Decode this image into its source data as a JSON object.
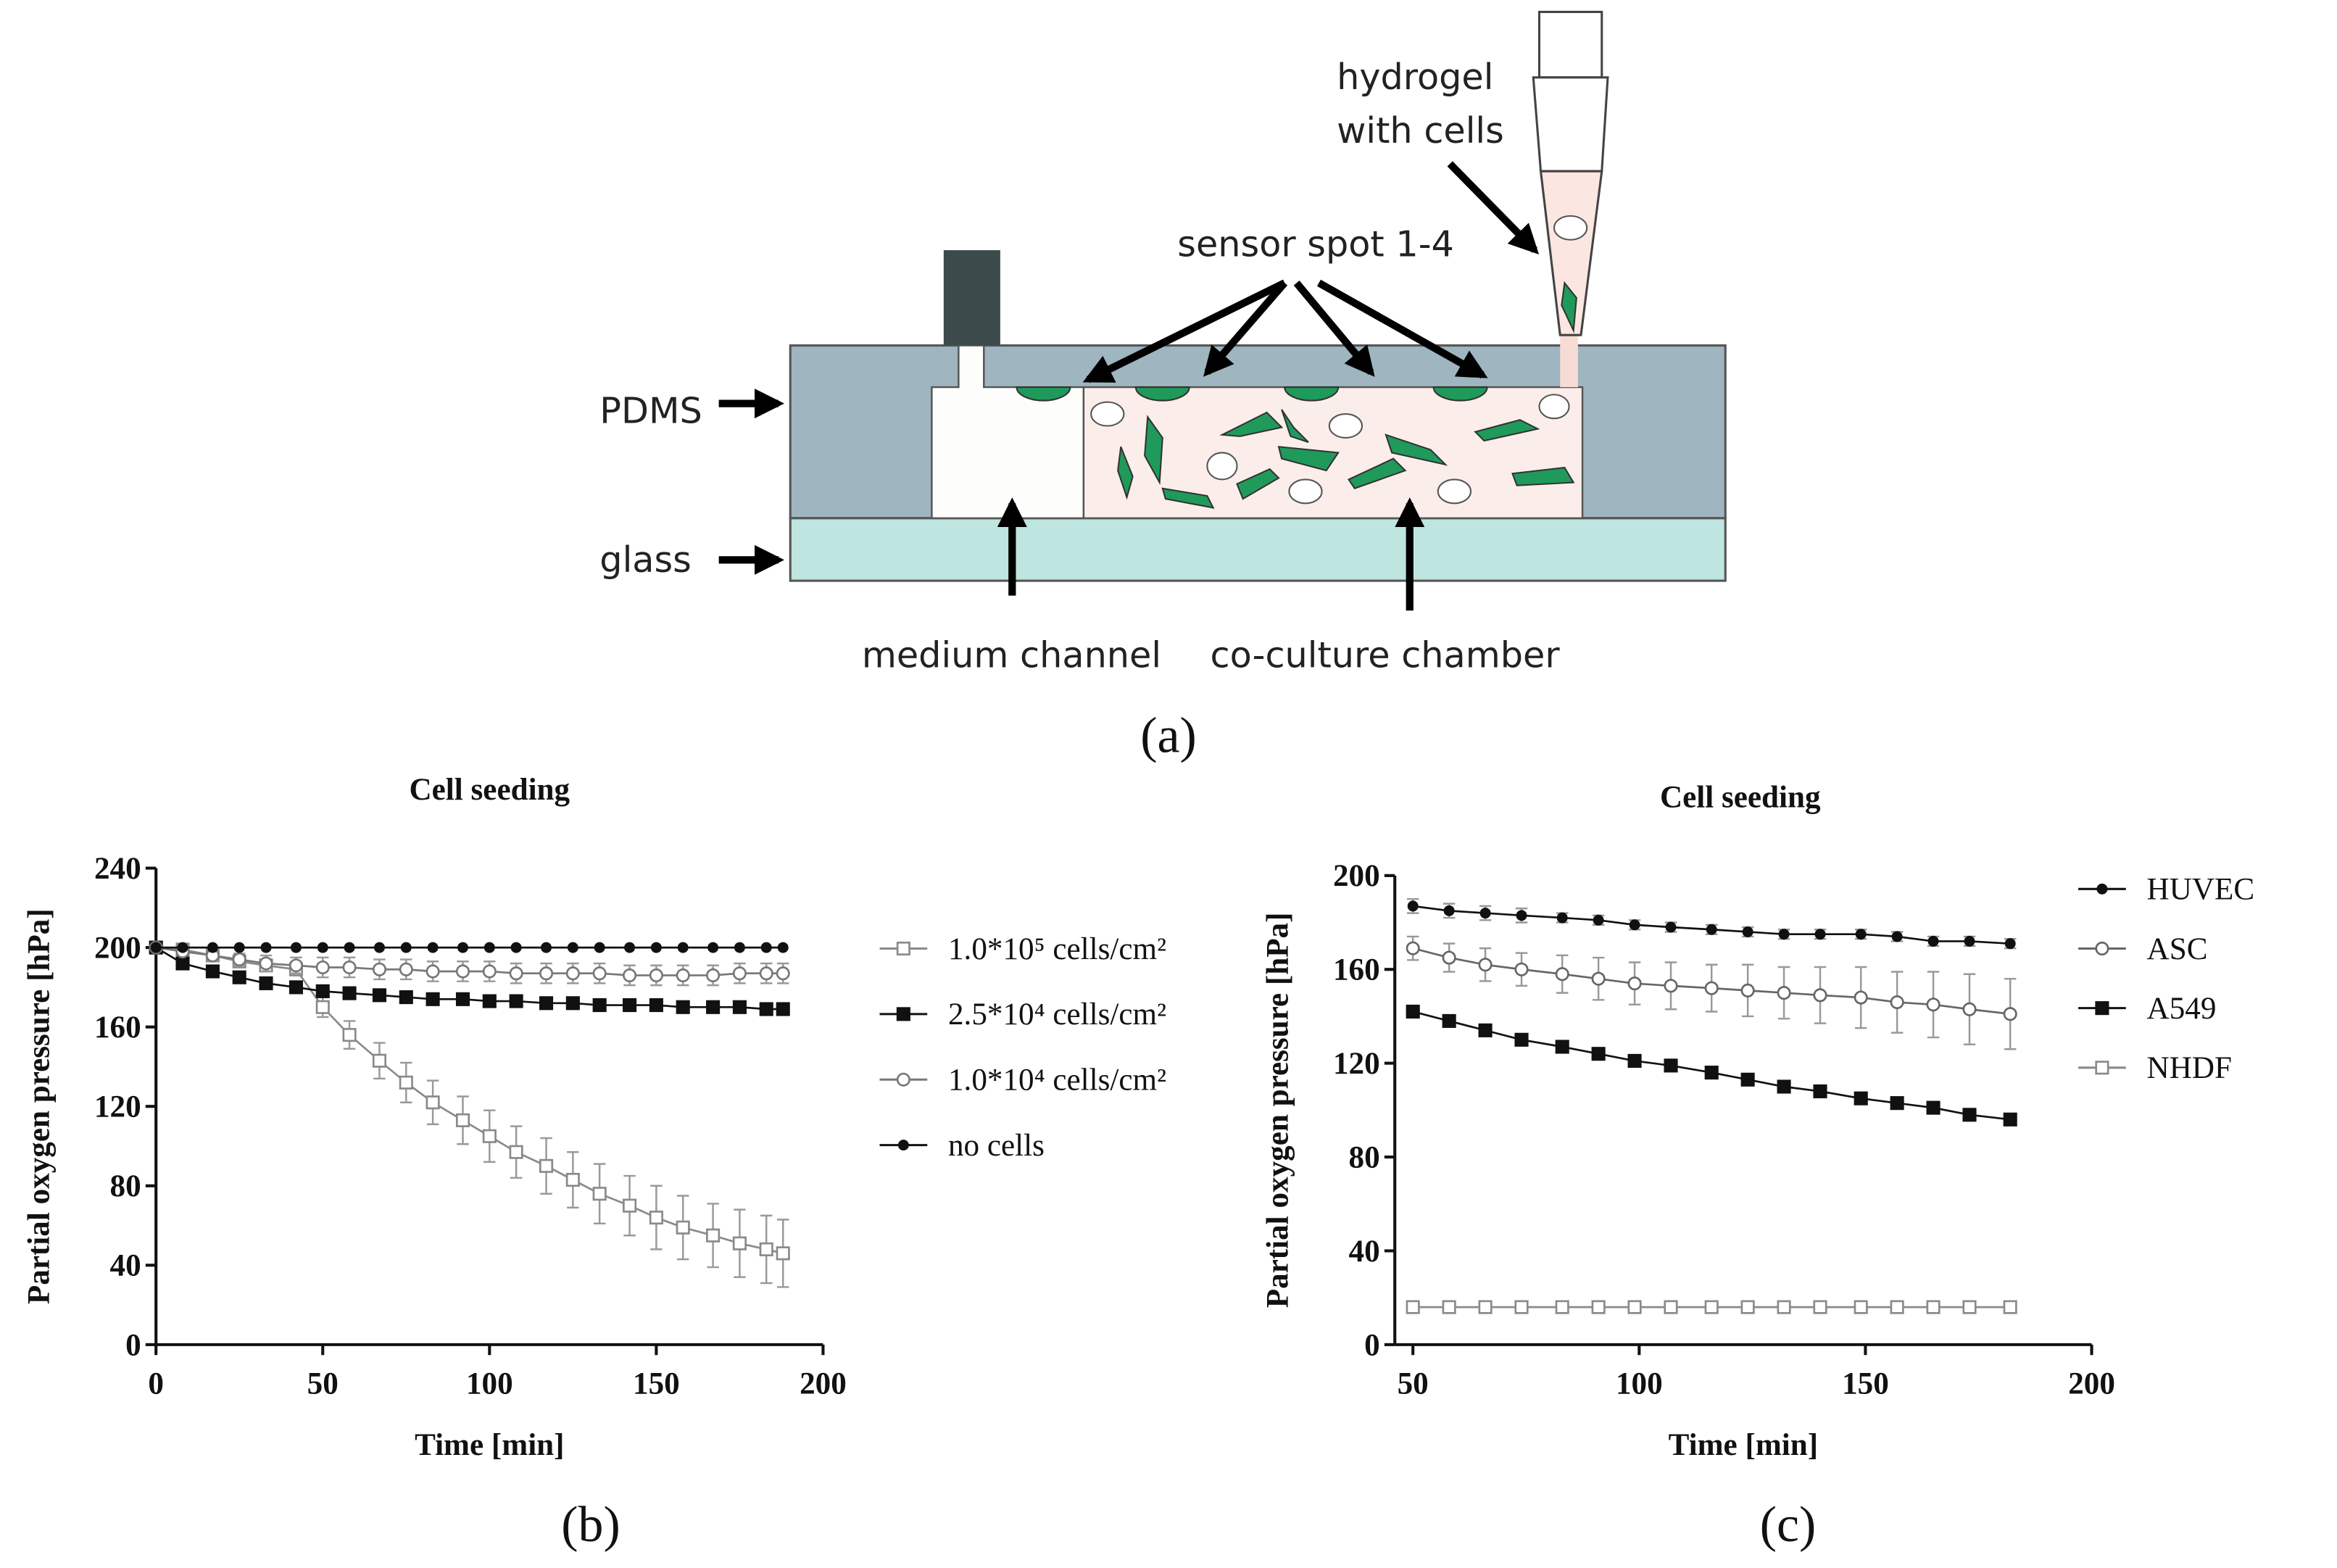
{
  "diagram": {
    "hydrogel_label": [
      "hydrogel",
      "with cells"
    ],
    "sensor_label": "sensor spot 1-4",
    "pdms_label": "PDMS",
    "glass_label": "glass",
    "channel_label": "medium channel",
    "chamber_label": "co-culture chamber"
  },
  "panel_labels": [
    "(a)",
    "(b)",
    "(c)"
  ],
  "chart_data": [
    {
      "type": "line",
      "title": "Cell seeding",
      "xlabel": "Time [min]",
      "ylabel": "Partial oxygen pressure [hPa]",
      "x": [
        0,
        8,
        17,
        25,
        33,
        42,
        50,
        58,
        67,
        75,
        83,
        92,
        100,
        108,
        117,
        125,
        133,
        142,
        150,
        158,
        167,
        175,
        183,
        188
      ],
      "xlim": [
        0,
        200
      ],
      "xticks": [
        0,
        50,
        100,
        150,
        200
      ],
      "ylim": [
        0,
        240
      ],
      "yticks": [
        0,
        40,
        80,
        120,
        160,
        200,
        240
      ],
      "series": [
        {
          "name": "1.0*10⁵ cells/cm²",
          "color": "#8a8a8a",
          "marker": "square-open",
          "values": [
            200,
            199,
            196,
            193,
            191,
            189,
            170,
            156,
            143,
            132,
            122,
            113,
            105,
            97,
            90,
            83,
            76,
            70,
            64,
            59,
            55,
            51,
            48,
            46
          ],
          "errors": [
            0,
            1,
            2,
            2,
            3,
            3,
            5,
            7,
            9,
            10,
            11,
            12,
            13,
            13,
            14,
            14,
            15,
            15,
            16,
            16,
            16,
            17,
            17,
            17
          ]
        },
        {
          "name": "2.5*10⁴ cells/cm²",
          "color": "#111111",
          "marker": "square",
          "values": [
            200,
            192,
            188,
            185,
            182,
            180,
            178,
            177,
            176,
            175,
            174,
            174,
            173,
            173,
            172,
            172,
            171,
            171,
            171,
            170,
            170,
            170,
            169,
            169
          ]
        },
        {
          "name": "1.0*10⁴ cells/cm²",
          "color": "#777777",
          "marker": "circle-open",
          "values": [
            200,
            198,
            196,
            194,
            192,
            191,
            190,
            190,
            189,
            189,
            188,
            188,
            188,
            187,
            187,
            187,
            187,
            186,
            186,
            186,
            186,
            187,
            187,
            187
          ],
          "errors": [
            0,
            2,
            3,
            3,
            4,
            4,
            5,
            5,
            5,
            5,
            5,
            5,
            5,
            5,
            5,
            5,
            5,
            5,
            5,
            5,
            5,
            5,
            5,
            5
          ]
        },
        {
          "name": "no cells",
          "color": "#111111",
          "marker": "dot",
          "values": [
            200,
            200,
            200,
            200,
            200,
            200,
            200,
            200,
            200,
            200,
            200,
            200,
            200,
            200,
            200,
            200,
            200,
            200,
            200,
            200,
            200,
            200,
            200,
            200
          ]
        }
      ]
    },
    {
      "type": "line",
      "title": "Cell seeding",
      "xlabel": "Time [min]",
      "ylabel": "Partial oxygen pressure [hPa]",
      "x": [
        50,
        58,
        66,
        74,
        83,
        91,
        99,
        107,
        116,
        124,
        132,
        140,
        149,
        157,
        165,
        173,
        182
      ],
      "xlim": [
        46,
        200
      ],
      "xticks": [
        50,
        100,
        150,
        200
      ],
      "ylim": [
        0,
        200
      ],
      "yticks": [
        0,
        40,
        80,
        120,
        160,
        200
      ],
      "series": [
        {
          "name": "HUVEC",
          "color": "#111111",
          "marker": "dot",
          "values": [
            187,
            185,
            184,
            183,
            182,
            181,
            179,
            178,
            177,
            176,
            175,
            175,
            175,
            174,
            172,
            172,
            171
          ],
          "errors": [
            3,
            3,
            3,
            3,
            2,
            2,
            2,
            2,
            2,
            2,
            2,
            2,
            2,
            2,
            2,
            2,
            2
          ]
        },
        {
          "name": "ASC",
          "color": "#666666",
          "marker": "circle-open",
          "values": [
            169,
            165,
            162,
            160,
            158,
            156,
            154,
            153,
            152,
            151,
            150,
            149,
            148,
            146,
            145,
            143,
            141
          ],
          "errors": [
            5,
            6,
            7,
            7,
            8,
            9,
            9,
            10,
            10,
            11,
            11,
            12,
            13,
            13,
            14,
            15,
            15
          ]
        },
        {
          "name": "A549",
          "color": "#111111",
          "marker": "square",
          "values": [
            142,
            138,
            134,
            130,
            127,
            124,
            121,
            119,
            116,
            113,
            110,
            108,
            105,
            103,
            101,
            98,
            96
          ]
        },
        {
          "name": "NHDF",
          "color": "#8a8a8a",
          "marker": "square-open",
          "values": [
            16,
            16,
            16,
            16,
            16,
            16,
            16,
            16,
            16,
            16,
            16,
            16,
            16,
            16,
            16,
            16,
            16
          ]
        }
      ]
    }
  ]
}
